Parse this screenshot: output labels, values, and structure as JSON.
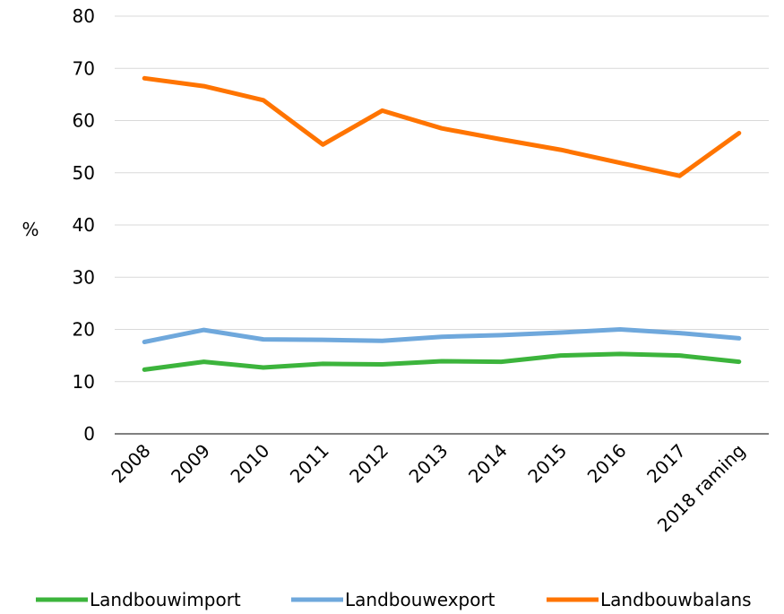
{
  "chart_data": {
    "type": "line",
    "title": "",
    "xlabel": "",
    "ylabel": "%",
    "ylim": [
      0,
      80
    ],
    "yticks": [
      0,
      10,
      20,
      30,
      40,
      50,
      60,
      70,
      80
    ],
    "grid": true,
    "legend_position": "bottom",
    "categories": [
      "2008",
      "2009",
      "2010",
      "2011",
      "2012",
      "2013",
      "2014",
      "2015",
      "2016",
      "2017",
      "2018 raming"
    ],
    "series": [
      {
        "name": "Landbouwimport",
        "color": "#3cb43c",
        "values": [
          12.3,
          13.8,
          12.7,
          13.4,
          13.3,
          13.9,
          13.8,
          15.0,
          15.3,
          15.0,
          13.8
        ]
      },
      {
        "name": "Landbouwexport",
        "color": "#6fa8dc",
        "values": [
          17.6,
          19.9,
          18.1,
          18.0,
          17.8,
          18.6,
          18.9,
          19.4,
          20.0,
          19.3,
          18.3
        ]
      },
      {
        "name": "Landbouwbalans",
        "color": "#ff7400",
        "values": [
          68.1,
          66.6,
          63.9,
          55.4,
          61.9,
          58.5,
          56.4,
          54.4,
          51.9,
          49.4,
          57.6
        ]
      }
    ]
  }
}
